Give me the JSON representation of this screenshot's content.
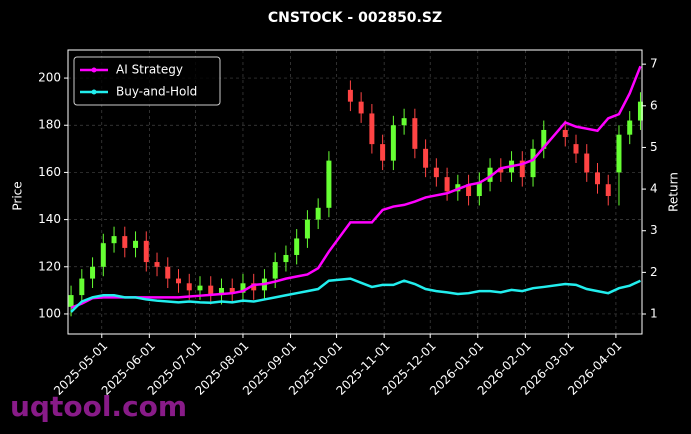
{
  "chart_data": {
    "type": "candlestick",
    "title": "CNSTOCK - 002850.SZ",
    "ylabel": "Price",
    "y2label": "Return",
    "watermark": "uqtool.com",
    "x": [
      "2025-04-11",
      "2025-04-18",
      "2025-04-25",
      "2025-05-02",
      "2025-05-09",
      "2025-05-16",
      "2025-05-23",
      "2025-05-30",
      "2025-06-06",
      "2025-06-13",
      "2025-06-20",
      "2025-06-27",
      "2025-07-04",
      "2025-07-11",
      "2025-07-18",
      "2025-07-25",
      "2025-08-01",
      "2025-08-08",
      "2025-08-15",
      "2025-08-22",
      "2025-08-29",
      "2025-09-05",
      "2025-09-12",
      "2025-09-19",
      "2025-09-26",
      "2025-10-10",
      "2025-10-17",
      "2025-10-24",
      "2025-10-31",
      "2025-11-07",
      "2025-11-14",
      "2025-11-21",
      "2025-11-28",
      "2025-12-05",
      "2025-12-12",
      "2025-12-19",
      "2025-12-26",
      "2026-01-02",
      "2026-01-09",
      "2026-01-16",
      "2026-01-23",
      "2026-01-30",
      "2026-02-06",
      "2026-02-13",
      "2026-02-27",
      "2026-03-06",
      "2026-03-13",
      "2026-03-20",
      "2026-03-27",
      "2026-04-03",
      "2026-04-10",
      "2026-04-17"
    ],
    "open": [
      103,
      108,
      115,
      120,
      130,
      133,
      128,
      131,
      122,
      120,
      115,
      113,
      110,
      112,
      108,
      111,
      109,
      113,
      110,
      115,
      122,
      125,
      132,
      140,
      145,
      195,
      190,
      185,
      172,
      165,
      180,
      183,
      170,
      162,
      158,
      152,
      155,
      150,
      156,
      162,
      160,
      165,
      158,
      170,
      178,
      172,
      168,
      160,
      155,
      160,
      176,
      182
    ],
    "high": [
      112,
      119,
      124,
      134,
      137,
      137,
      135,
      135,
      126,
      124,
      119,
      117,
      116,
      116,
      115,
      115,
      117,
      117,
      119,
      126,
      129,
      136,
      144,
      149,
      169,
      199,
      194,
      189,
      176,
      184,
      187,
      187,
      174,
      166,
      162,
      159,
      159,
      160,
      166,
      166,
      169,
      169,
      174,
      182,
      182,
      176,
      172,
      164,
      159,
      180,
      186,
      194
    ],
    "low": [
      99,
      104,
      111,
      116,
      126,
      124,
      124,
      118,
      116,
      111,
      109,
      106,
      106,
      104,
      104,
      105,
      105,
      106,
      106,
      111,
      118,
      121,
      128,
      136,
      141,
      186,
      181,
      168,
      161,
      161,
      176,
      166,
      158,
      154,
      148,
      148,
      146,
      146,
      152,
      156,
      156,
      154,
      154,
      166,
      171,
      164,
      156,
      151,
      146,
      146,
      172,
      178
    ],
    "close": [
      108,
      115,
      120,
      130,
      133,
      128,
      131,
      122,
      120,
      115,
      113,
      110,
      112,
      108,
      111,
      109,
      113,
      110,
      115,
      122,
      125,
      132,
      140,
      145,
      165,
      190,
      185,
      172,
      165,
      180,
      183,
      170,
      162,
      158,
      152,
      155,
      150,
      156,
      162,
      160,
      165,
      158,
      170,
      178,
      175,
      168,
      160,
      155,
      150,
      176,
      182,
      190
    ],
    "up_color": "#66ff33",
    "down_color": "#ff4444",
    "series": [
      {
        "name": "AI Strategy",
        "color": "#ff00ff",
        "axis": "y2",
        "values": [
          1.15,
          1.25,
          1.38,
          1.4,
          1.4,
          1.4,
          1.4,
          1.4,
          1.4,
          1.4,
          1.4,
          1.42,
          1.44,
          1.46,
          1.48,
          1.5,
          1.55,
          1.7,
          1.72,
          1.78,
          1.85,
          1.9,
          1.95,
          2.1,
          2.5,
          3.2,
          3.2,
          3.2,
          3.5,
          3.58,
          3.62,
          3.7,
          3.8,
          3.85,
          3.9,
          4.0,
          4.1,
          4.15,
          4.3,
          4.5,
          4.55,
          4.6,
          4.7,
          5.0,
          5.6,
          5.5,
          5.45,
          5.4,
          5.7,
          5.8,
          6.3,
          6.95
        ]
      },
      {
        "name": "Buy-and-Hold",
        "color": "#22eeee",
        "axis": "y2",
        "values": [
          1.05,
          1.3,
          1.4,
          1.45,
          1.45,
          1.4,
          1.4,
          1.35,
          1.32,
          1.3,
          1.28,
          1.3,
          1.28,
          1.27,
          1.3,
          1.28,
          1.32,
          1.3,
          1.35,
          1.4,
          1.45,
          1.5,
          1.55,
          1.6,
          1.8,
          1.85,
          1.75,
          1.65,
          1.7,
          1.7,
          1.8,
          1.72,
          1.6,
          1.55,
          1.52,
          1.48,
          1.5,
          1.55,
          1.55,
          1.52,
          1.58,
          1.55,
          1.62,
          1.65,
          1.72,
          1.7,
          1.6,
          1.55,
          1.5,
          1.62,
          1.68,
          1.8
        ]
      }
    ],
    "xlim": [
      "2025-04-09",
      "2026-04-18"
    ],
    "xticks": [
      "2025-05-01",
      "2025-06-01",
      "2025-07-01",
      "2025-08-01",
      "2025-09-01",
      "2025-10-01",
      "2025-11-01",
      "2025-12-01",
      "2026-01-01",
      "2026-02-01",
      "2026-03-01",
      "2026-04-01"
    ],
    "ylim": [
      91.5,
      211.9
    ],
    "yticks": [
      100,
      120,
      140,
      160,
      180,
      200
    ],
    "y2lim": [
      0.52,
      7.34
    ],
    "y2ticks": [
      1,
      2,
      3,
      4,
      5,
      6,
      7
    ],
    "grid": true,
    "legend": "upper left"
  }
}
